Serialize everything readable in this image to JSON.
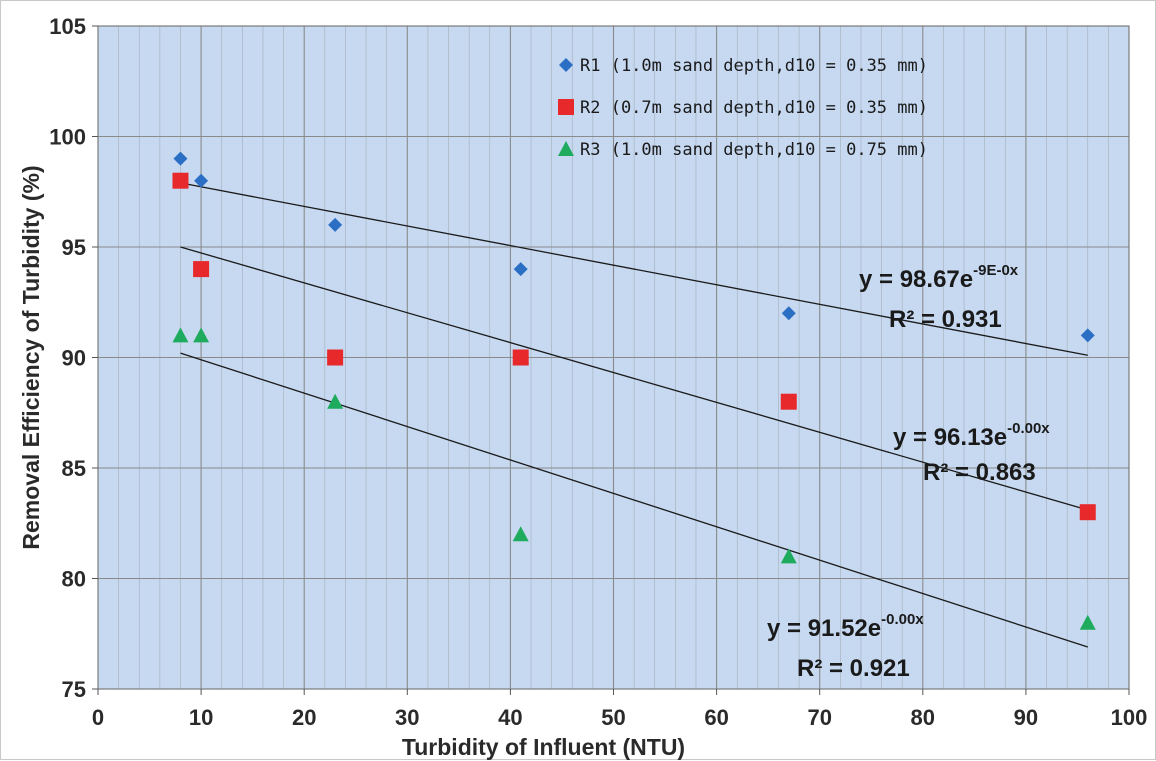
{
  "chart_data": {
    "type": "scatter",
    "title": "",
    "xlabel": "Turbidity of Influent (NTU)",
    "ylabel": "Removal Efficiency of Turbidity (%)",
    "xlim": [
      0,
      100
    ],
    "ylim": [
      75,
      105
    ],
    "x_ticks": [
      "0",
      "10",
      "20",
      "30",
      "40",
      "50",
      "60",
      "70",
      "80",
      "90",
      "100"
    ],
    "y_ticks": [
      "75",
      "80",
      "85",
      "90",
      "95",
      "100",
      "105"
    ],
    "grid": true,
    "legend_position": "top-right",
    "colors": {
      "plot_background": "#c6d9f1",
      "grid": "#8a8a8a"
    },
    "series": [
      {
        "name": "R1",
        "legend_label": "R1 (1.0m sand depth,d10 = 0.35 mm)",
        "marker": "diamond",
        "color": "#2a6fc4",
        "x": [
          8,
          10,
          23,
          41,
          67,
          96
        ],
        "y": [
          99,
          98,
          96,
          94,
          92,
          91
        ],
        "trendline": {
          "x": [
            8,
            96
          ],
          "y": [
            97.9,
            90.1
          ]
        },
        "equation": {
          "main": "y = 98.67e",
          "exponent": "-9E-0x",
          "r2_label": "R² = 0.931"
        }
      },
      {
        "name": "R2",
        "legend_label": "R2 (0.7m sand depth,d10 = 0.35 mm)",
        "marker": "square",
        "color": "#e8292b",
        "x": [
          8,
          10,
          23,
          41,
          67,
          96
        ],
        "y": [
          98,
          94,
          90,
          90,
          88,
          83
        ],
        "trendline": {
          "x": [
            8,
            96
          ],
          "y": [
            95.0,
            83.1
          ]
        },
        "equation": {
          "main": "y = 96.13e",
          "exponent": "-0.00x",
          "r2_label": "R² = 0.863"
        }
      },
      {
        "name": "R3",
        "legend_label": "R3 (1.0m sand depth,d10 = 0.75 mm)",
        "marker": "triangle",
        "color": "#1fab5e",
        "x": [
          8,
          10,
          23,
          41,
          67,
          96
        ],
        "y": [
          91,
          91,
          88,
          82,
          81,
          78
        ],
        "trendline": {
          "x": [
            8,
            96
          ],
          "y": [
            90.2,
            76.9
          ]
        },
        "equation": {
          "main": "y = 91.52e",
          "exponent": "-0.00x",
          "r2_label": "R² = 0.921"
        }
      }
    ]
  }
}
